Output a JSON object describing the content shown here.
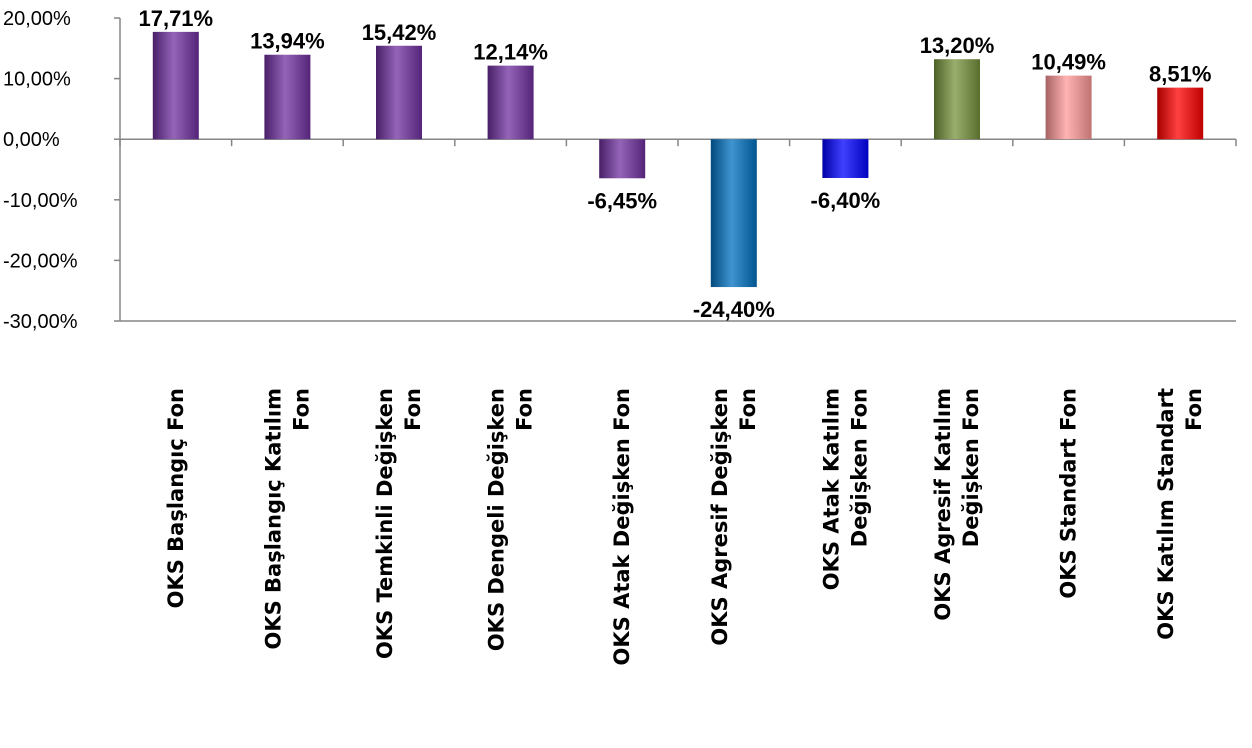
{
  "chart_data": {
    "type": "bar",
    "categories": [
      [
        "OKS Başlangıç Fon"
      ],
      [
        "OKS Başlangıç Katılım",
        "Fon"
      ],
      [
        "OKS Temkinli Değişken",
        "Fon"
      ],
      [
        "OKS Dengeli Değişken",
        "Fon"
      ],
      [
        "OKS Atak Değişken Fon"
      ],
      [
        "OKS Agresif Değişken",
        "Fon"
      ],
      [
        "OKS Atak Katılım",
        "Değişken Fon"
      ],
      [
        "OKS Agresif Katılım",
        "Değişken Fon"
      ],
      [
        "OKS Standart Fon"
      ],
      [
        "OKS Katılım Standart",
        "Fon"
      ]
    ],
    "values": [
      17.71,
      13.94,
      15.42,
      12.14,
      -6.45,
      -24.4,
      -6.4,
      13.2,
      10.49,
      8.51
    ],
    "data_labels": [
      "17,71%",
      "13,94%",
      "15,42%",
      "12,14%",
      "-6,45%",
      "-24,40%",
      "-6,40%",
      "13,20%",
      "10,49%",
      "8,51%"
    ],
    "bar_colors": [
      "#7030a0",
      "#7030a0",
      "#7030a0",
      "#7030a0",
      "#7030a0",
      "#0070c0",
      "#0000ff",
      "#77933c",
      "#ff9999",
      "#ff0000"
    ],
    "y_ticks": [
      20,
      10,
      0,
      -10,
      -20,
      -30
    ],
    "y_tick_labels": [
      "20,00%",
      "10,00%",
      "0,00%",
      "-10,00%",
      "-20,00%",
      "-30,00%"
    ],
    "ylim": [
      -30,
      20
    ],
    "title": "",
    "xlabel": "",
    "ylabel": "",
    "grid": false,
    "legend": "none"
  }
}
